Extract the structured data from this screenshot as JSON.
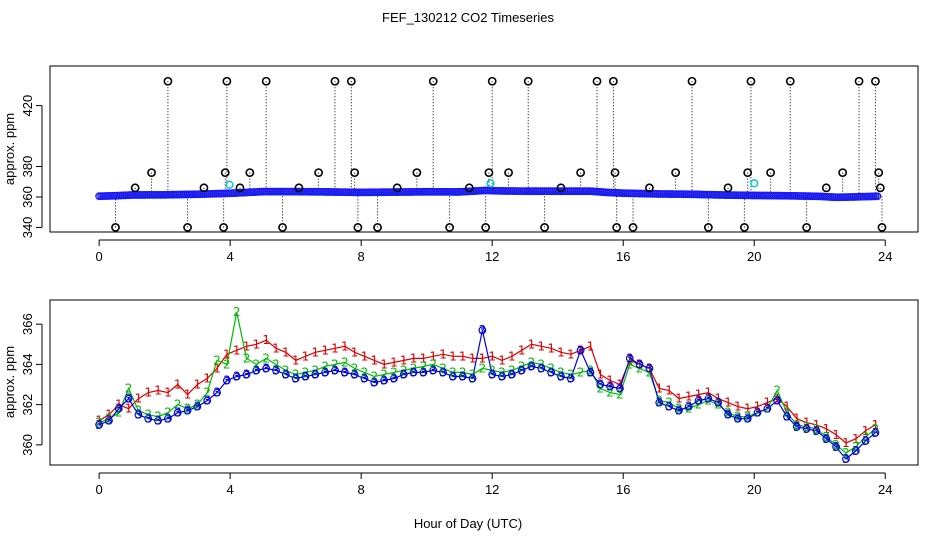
{
  "title": "FEF_130212  CO2 Timeseries",
  "xlabel": "Hour of Day (UTC)",
  "chart_data": [
    {
      "type": "scatter",
      "name": "raw-timeseries-panel",
      "ylabel": "approx. ppm",
      "xlim": [
        -1.5,
        25
      ],
      "ylim": [
        337,
        446
      ],
      "xticks": [
        0,
        4,
        8,
        12,
        16,
        20,
        24
      ],
      "yticks": [
        340,
        360,
        380,
        420
      ],
      "baseline_profile": {
        "x": [
          0,
          0.5,
          1,
          2,
          3,
          4,
          5,
          6,
          7,
          8,
          9,
          10,
          11,
          11.8,
          12.2,
          13,
          14,
          15,
          15.5,
          16,
          17,
          18,
          19,
          20,
          21,
          22,
          22.5,
          23,
          23.8
        ],
        "y": [
          360.5,
          360.8,
          361.3,
          361.4,
          361.8,
          362.4,
          363.5,
          363.5,
          363.3,
          363.0,
          363.2,
          363.4,
          363.3,
          364.3,
          364.0,
          363.8,
          363.8,
          363.8,
          363.0,
          362.5,
          362.0,
          361.8,
          361.3,
          361.0,
          360.8,
          360.4,
          359.8,
          360.0,
          360.5
        ]
      },
      "spikes": {
        "x": [
          0.5,
          1.1,
          1.6,
          2.1,
          2.7,
          3.2,
          3.8,
          3.85,
          3.9,
          4.3,
          4.6,
          5.1,
          5.6,
          6.1,
          6.7,
          7.2,
          7.7,
          7.8,
          7.9,
          8.5,
          9.1,
          9.7,
          10.2,
          10.7,
          11.3,
          11.8,
          11.9,
          12.0,
          12.5,
          13.1,
          13.6,
          14.1,
          14.7,
          15.2,
          15.7,
          15.75,
          15.8,
          16.3,
          16.8,
          17.6,
          18.1,
          18.6,
          19.2,
          19.7,
          19.8,
          19.9,
          20.5,
          21.1,
          21.6,
          22.2,
          22.7,
          23.2,
          23.7,
          23.8,
          23.85,
          23.9
        ],
        "y": [
          340,
          366,
          376,
          436,
          340,
          366,
          340,
          376,
          436,
          366,
          376,
          436,
          340,
          366,
          376,
          436,
          436,
          376,
          340,
          340,
          366,
          376,
          436,
          340,
          366,
          340,
          376,
          436,
          376,
          436,
          340,
          366,
          376,
          436,
          436,
          376,
          340,
          340,
          366,
          376,
          436,
          340,
          366,
          340,
          376,
          436,
          376,
          436,
          340,
          366,
          376,
          436,
          436,
          376,
          366,
          340
        ]
      },
      "cyan_points": {
        "x": [
          3.98,
          11.95,
          20.0
        ],
        "y": [
          368,
          369,
          369
        ]
      }
    },
    {
      "type": "line",
      "name": "smoothed-series-panel",
      "ylabel": "approx. ppm",
      "xlim": [
        -1.5,
        25
      ],
      "ylim": [
        359,
        367.2
      ],
      "xticks": [
        0,
        4,
        8,
        12,
        16,
        20,
        24
      ],
      "yticks": [
        360,
        362,
        364,
        366
      ],
      "series": [
        {
          "name": "1",
          "color": "#dd0000",
          "x": [
            0,
            0.3,
            0.6,
            0.9,
            1.2,
            1.5,
            1.8,
            2.1,
            2.4,
            2.7,
            3.0,
            3.3,
            3.6,
            3.9,
            4.2,
            4.5,
            4.8,
            5.1,
            5.4,
            5.7,
            6.0,
            6.3,
            6.6,
            6.9,
            7.2,
            7.5,
            7.8,
            8.1,
            8.4,
            8.7,
            9.0,
            9.3,
            9.6,
            9.9,
            10.2,
            10.5,
            10.8,
            11.1,
            11.4,
            11.7,
            12.0,
            12.3,
            12.6,
            12.9,
            13.2,
            13.5,
            13.8,
            14.1,
            14.4,
            14.7,
            15.0,
            15.3,
            15.6,
            15.9,
            16.2,
            16.5,
            16.8,
            17.1,
            17.4,
            17.7,
            18.0,
            18.3,
            18.6,
            18.9,
            19.2,
            19.5,
            19.8,
            20.1,
            20.4,
            20.7,
            21.0,
            21.3,
            21.6,
            21.9,
            22.2,
            22.5,
            22.8,
            23.1,
            23.4,
            23.7
          ],
          "y": [
            361.2,
            361.5,
            362.0,
            361.8,
            362.3,
            362.6,
            362.7,
            362.6,
            363.0,
            362.5,
            363.0,
            363.3,
            363.8,
            364.5,
            364.7,
            364.9,
            365.0,
            365.2,
            364.8,
            364.6,
            364.2,
            364.4,
            364.6,
            364.7,
            364.8,
            364.9,
            364.6,
            364.4,
            364.2,
            364.0,
            364.1,
            364.2,
            364.3,
            364.3,
            364.4,
            364.5,
            364.4,
            364.4,
            364.3,
            364.3,
            364.4,
            364.2,
            364.4,
            364.7,
            365.0,
            364.9,
            364.8,
            364.6,
            364.5,
            364.7,
            364.9,
            363.5,
            363.2,
            363.0,
            364.2,
            364.0,
            363.8,
            362.8,
            362.7,
            362.3,
            362.4,
            362.5,
            362.6,
            362.3,
            362.1,
            361.9,
            361.8,
            361.9,
            362.1,
            362.3,
            361.9,
            361.3,
            361.1,
            361.0,
            360.8,
            360.5,
            360.1,
            360.3,
            360.7,
            361.0
          ]
        },
        {
          "name": "2",
          "color": "#00bb00",
          "x": [
            0,
            0.3,
            0.6,
            0.9,
            1.2,
            1.5,
            1.8,
            2.1,
            2.4,
            2.7,
            3.0,
            3.3,
            3.6,
            3.9,
            4.2,
            4.5,
            4.8,
            5.1,
            5.4,
            5.7,
            6.0,
            6.3,
            6.6,
            6.9,
            7.2,
            7.5,
            7.8,
            8.1,
            8.4,
            8.7,
            9.0,
            9.3,
            9.6,
            9.9,
            10.2,
            10.5,
            10.8,
            11.1,
            11.4,
            11.7,
            12.0,
            12.3,
            12.6,
            12.9,
            13.2,
            13.5,
            13.8,
            14.1,
            14.4,
            14.7,
            15.0,
            15.3,
            15.6,
            15.9,
            16.2,
            16.5,
            16.8,
            17.1,
            17.4,
            17.7,
            18.0,
            18.3,
            18.6,
            18.9,
            19.2,
            19.5,
            19.8,
            20.1,
            20.4,
            20.7,
            21.0,
            21.3,
            21.6,
            21.9,
            22.2,
            22.5,
            22.8,
            23.1,
            23.4,
            23.7
          ],
          "y": [
            361.1,
            361.3,
            361.6,
            362.8,
            361.7,
            361.5,
            361.4,
            361.6,
            362.0,
            361.8,
            362.0,
            362.6,
            364.2,
            364.0,
            366.6,
            364.3,
            364.0,
            364.3,
            364.0,
            363.7,
            363.5,
            363.6,
            363.7,
            363.9,
            364.0,
            364.1,
            363.8,
            363.6,
            363.4,
            363.5,
            363.6,
            363.7,
            363.8,
            363.9,
            364.0,
            363.8,
            363.6,
            363.6,
            363.5,
            363.8,
            363.7,
            363.6,
            363.7,
            363.9,
            364.1,
            364.0,
            363.8,
            363.6,
            363.5,
            363.6,
            363.7,
            362.8,
            362.6,
            362.5,
            364.0,
            363.8,
            363.6,
            362.2,
            362.1,
            361.8,
            361.8,
            362.0,
            362.2,
            362.0,
            361.6,
            361.4,
            361.4,
            361.6,
            361.8,
            362.7,
            361.6,
            361.0,
            360.9,
            360.8,
            360.4,
            360.0,
            359.6,
            359.9,
            360.4,
            360.8
          ]
        },
        {
          "name": "3",
          "color": "#0000dd",
          "x": [
            0,
            0.3,
            0.6,
            0.9,
            1.2,
            1.5,
            1.8,
            2.1,
            2.4,
            2.7,
            3.0,
            3.3,
            3.6,
            3.9,
            4.2,
            4.5,
            4.8,
            5.1,
            5.4,
            5.7,
            6.0,
            6.3,
            6.6,
            6.9,
            7.2,
            7.5,
            7.8,
            8.1,
            8.4,
            8.7,
            9.0,
            9.3,
            9.6,
            9.9,
            10.2,
            10.5,
            10.8,
            11.1,
            11.4,
            11.7,
            12.0,
            12.3,
            12.6,
            12.9,
            13.2,
            13.5,
            13.8,
            14.1,
            14.4,
            14.7,
            15.0,
            15.3,
            15.6,
            15.9,
            16.2,
            16.5,
            16.8,
            17.1,
            17.4,
            17.7,
            18.0,
            18.3,
            18.6,
            18.9,
            19.2,
            19.5,
            19.8,
            20.1,
            20.4,
            20.7,
            21.0,
            21.3,
            21.6,
            21.9,
            22.2,
            22.5,
            22.8,
            23.1,
            23.4,
            23.7
          ],
          "y": [
            361.0,
            361.2,
            361.8,
            362.3,
            361.5,
            361.3,
            361.2,
            361.3,
            361.6,
            361.7,
            361.9,
            362.2,
            362.6,
            363.2,
            363.4,
            363.5,
            363.7,
            363.8,
            363.7,
            363.5,
            363.3,
            363.4,
            363.5,
            363.6,
            363.7,
            363.6,
            363.5,
            363.3,
            363.1,
            363.2,
            363.3,
            363.5,
            363.6,
            363.6,
            363.7,
            363.6,
            363.4,
            363.4,
            363.3,
            365.7,
            363.5,
            363.4,
            363.5,
            363.7,
            363.9,
            363.8,
            363.6,
            363.4,
            363.3,
            364.7,
            363.6,
            363.0,
            362.9,
            362.8,
            364.3,
            364.0,
            363.8,
            362.1,
            361.9,
            361.7,
            361.9,
            362.2,
            362.3,
            362.1,
            361.5,
            361.3,
            361.3,
            361.6,
            361.8,
            362.2,
            361.4,
            360.9,
            360.8,
            360.7,
            360.3,
            359.9,
            359.3,
            359.7,
            360.2,
            360.6
          ]
        }
      ]
    }
  ]
}
